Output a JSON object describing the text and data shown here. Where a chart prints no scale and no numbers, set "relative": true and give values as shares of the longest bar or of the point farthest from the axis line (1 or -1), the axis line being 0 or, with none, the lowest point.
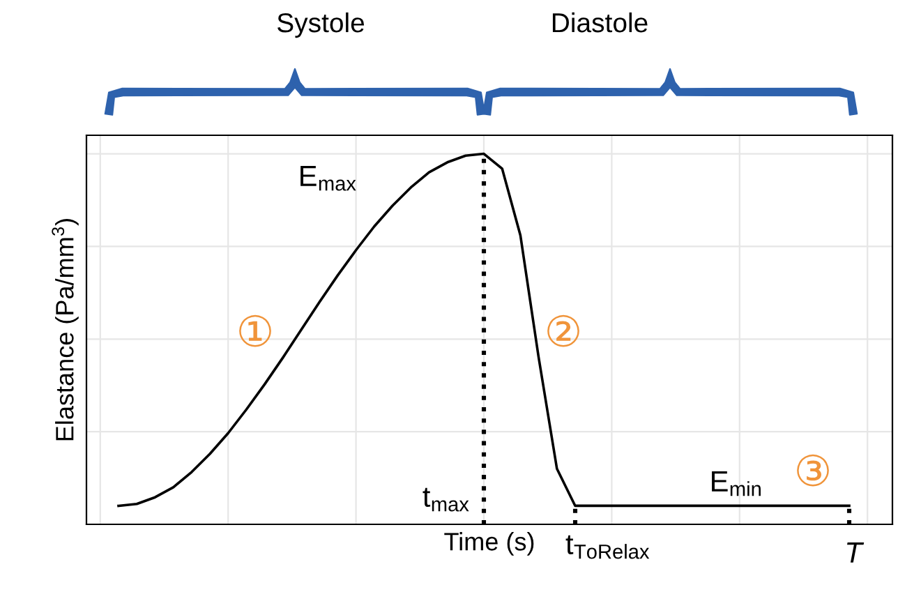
{
  "chart_data": {
    "type": "line",
    "relative": true,
    "xlabel": "Time (s)",
    "ylabel": "Elastance (Pa/mm$^{3}$)",
    "categories": [
      null,
      null,
      null,
      null,
      null,
      null,
      null,
      null,
      null,
      null,
      null,
      null,
      null,
      null,
      null,
      null,
      null,
      null,
      null,
      null,
      null,
      null,
      null,
      null,
      null,
      null,
      null,
      null,
      null,
      null,
      null,
      null,
      null,
      null,
      null,
      null,
      null,
      null,
      null,
      null,
      null
    ],
    "series": [
      {
        "color": "#000000",
        "values": [
          0.05,
          0.055,
          0.073,
          0.1,
          0.141,
          0.19,
          0.246,
          0.31,
          0.378,
          0.45,
          0.525,
          0.6,
          0.672,
          0.74,
          0.804,
          0.86,
          0.909,
          0.95,
          0.977,
          0.995,
          1.0,
          0.96,
          0.78,
          0.45,
          0.15,
          0.05,
          0.05,
          0.05,
          0.05,
          0.05,
          0.05,
          0.05,
          0.05,
          0.05,
          0.05,
          0.05,
          0.05,
          0.05,
          0.05,
          0.05,
          0.05
        ]
      }
    ],
    "annotations": [
      "Systole",
      "Diastole",
      "E$_{max}$",
      "E$_{min}$",
      "①",
      "②",
      "③",
      "t$_{max}$",
      "t$_{ToRelax}$",
      "T"
    ],
    "grid": true,
    "marker": "none",
    "line_style": "solid"
  }
}
